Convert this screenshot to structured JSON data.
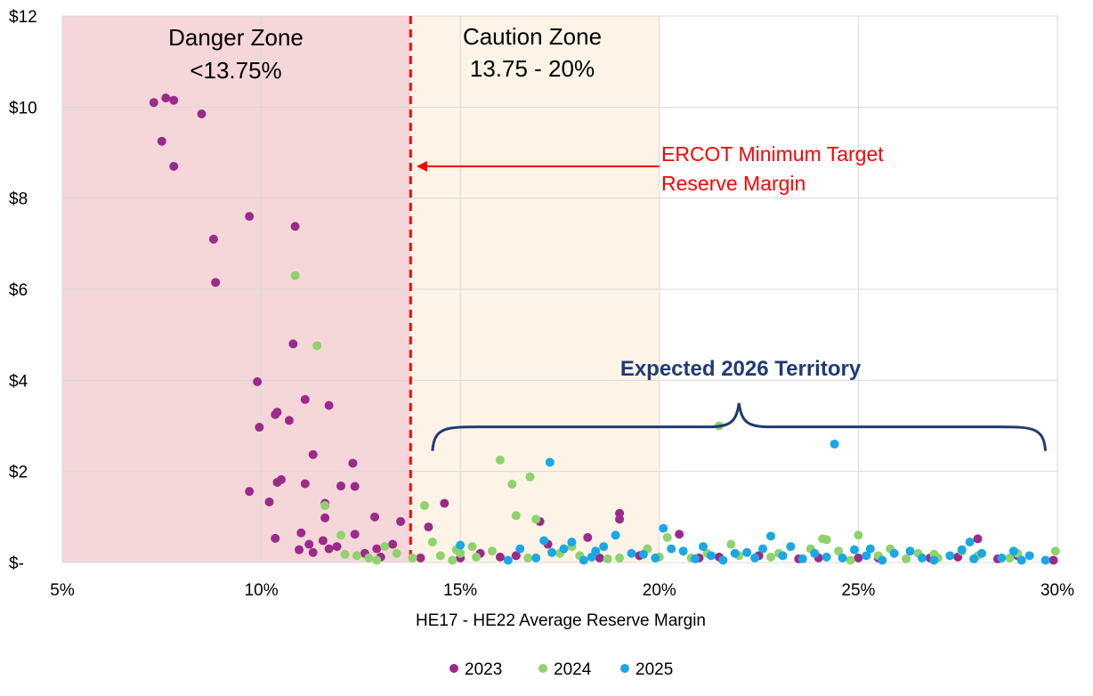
{
  "chart_data": {
    "type": "scatter",
    "title": "",
    "xlabel": "HE17 - HE22 Average Reserve Margin",
    "ylabel": "",
    "xlim": [
      5,
      30
    ],
    "ylim": [
      0,
      12
    ],
    "x_ticks": [
      5,
      10,
      15,
      20,
      25,
      30
    ],
    "x_tick_labels": [
      "5%",
      "10%",
      "15%",
      "20%",
      "25%",
      "30%"
    ],
    "y_ticks": [
      0,
      2,
      4,
      6,
      8,
      10,
      12
    ],
    "y_tick_labels": [
      "$-",
      "$2",
      "$4",
      "$6",
      "$8",
      "$10",
      "$12"
    ],
    "grid": true,
    "legend_position": "bottom-center",
    "zones": [
      {
        "name": "danger",
        "label_line1": "Danger Zone",
        "label_line2": "<13.75%",
        "x_from": 5,
        "x_to": 13.75,
        "color": "#f5d7d9"
      },
      {
        "name": "caution",
        "label_line1": "Caution Zone",
        "label_line2": "13.75 - 20%",
        "x_from": 13.75,
        "x_to": 20,
        "color": "#fdf3e6"
      }
    ],
    "reference_line": {
      "x": 13.75,
      "color": "#ff0000"
    },
    "annotations": {
      "target_line1": "ERCOT Minimum Target",
      "target_line2": "Reserve Margin",
      "target_arrow_from": [
        20,
        8.7
      ],
      "target_arrow_to": [
        13.9,
        8.7
      ],
      "territory_label": "Expected 2026 Territory",
      "territory_brace": {
        "x_from": 14.3,
        "x_to": 29.7,
        "y_base": 2.45,
        "y_tip": 3.5
      }
    },
    "series": [
      {
        "name": "2023",
        "color": "#9b2a8a",
        "points": [
          [
            7.3,
            10.1
          ],
          [
            7.6,
            10.2
          ],
          [
            7.8,
            10.15
          ],
          [
            7.5,
            9.25
          ],
          [
            8.5,
            9.85
          ],
          [
            7.8,
            8.7
          ],
          [
            9.7,
            7.6
          ],
          [
            10.85,
            7.38
          ],
          [
            8.8,
            7.1
          ],
          [
            8.85,
            6.15
          ],
          [
            10.8,
            4.8
          ],
          [
            9.9,
            3.97
          ],
          [
            11.1,
            3.58
          ],
          [
            11.7,
            3.45
          ],
          [
            10.4,
            3.3
          ],
          [
            10.35,
            3.25
          ],
          [
            10.7,
            3.12
          ],
          [
            9.95,
            2.97
          ],
          [
            11.3,
            2.37
          ],
          [
            12.3,
            2.18
          ],
          [
            10.5,
            1.82
          ],
          [
            10.4,
            1.76
          ],
          [
            11.1,
            1.73
          ],
          [
            12.0,
            1.68
          ],
          [
            12.35,
            1.67
          ],
          [
            9.7,
            1.56
          ],
          [
            10.2,
            1.33
          ],
          [
            11.6,
            1.3
          ],
          [
            12.85,
            1.0
          ],
          [
            11.6,
            0.98
          ],
          [
            13.5,
            0.9
          ],
          [
            11.0,
            0.65
          ],
          [
            12.35,
            0.62
          ],
          [
            11.55,
            0.48
          ],
          [
            10.35,
            0.53
          ],
          [
            13.3,
            0.4
          ],
          [
            11.2,
            0.4
          ],
          [
            12.9,
            0.3
          ],
          [
            10.95,
            0.28
          ],
          [
            11.7,
            0.3
          ],
          [
            11.9,
            0.35
          ],
          [
            11.3,
            0.22
          ],
          [
            12.6,
            0.2
          ],
          [
            14.6,
            1.3
          ],
          [
            14.2,
            0.78
          ],
          [
            17.0,
            0.9
          ],
          [
            19.0,
            1.08
          ],
          [
            19.0,
            0.95
          ],
          [
            20.5,
            0.62
          ],
          [
            28.0,
            0.52
          ],
          [
            17.2,
            0.4
          ],
          [
            18.2,
            0.55
          ],
          [
            15.5,
            0.2
          ],
          [
            16.4,
            0.15
          ],
          [
            18.5,
            0.1
          ],
          [
            21.0,
            0.1
          ],
          [
            22.5,
            0.15
          ],
          [
            24.0,
            0.1
          ],
          [
            25.5,
            0.1
          ],
          [
            26.8,
            0.1
          ],
          [
            29.9,
            0.05
          ],
          [
            13.0,
            0.12
          ],
          [
            15.0,
            0.1
          ],
          [
            23.5,
            0.08
          ],
          [
            27.5,
            0.12
          ],
          [
            29.0,
            0.15
          ],
          [
            16.0,
            0.12
          ],
          [
            19.5,
            0.15
          ],
          [
            21.5,
            0.12
          ],
          [
            25.0,
            0.1
          ],
          [
            28.5,
            0.08
          ],
          [
            14.0,
            0.1
          ]
        ]
      },
      {
        "name": "2024",
        "color": "#8ed36c",
        "points": [
          [
            10.85,
            6.3
          ],
          [
            11.4,
            4.76
          ],
          [
            21.5,
            3.0
          ],
          [
            16.0,
            2.25
          ],
          [
            16.3,
            1.72
          ],
          [
            16.75,
            1.88
          ],
          [
            14.1,
            1.25
          ],
          [
            11.6,
            1.25
          ],
          [
            16.4,
            1.03
          ],
          [
            16.9,
            0.95
          ],
          [
            14.3,
            0.45
          ],
          [
            20.2,
            0.55
          ],
          [
            24.2,
            0.5
          ],
          [
            25.0,
            0.6
          ],
          [
            24.1,
            0.52
          ],
          [
            12.0,
            0.6
          ],
          [
            13.1,
            0.35
          ],
          [
            12.4,
            0.15
          ],
          [
            12.7,
            0.1
          ],
          [
            13.4,
            0.2
          ],
          [
            14.5,
            0.15
          ],
          [
            15.0,
            0.2
          ],
          [
            15.4,
            0.12
          ],
          [
            15.8,
            0.25
          ],
          [
            17.5,
            0.2
          ],
          [
            18.0,
            0.15
          ],
          [
            19.0,
            0.1
          ],
          [
            20.0,
            0.12
          ],
          [
            21.2,
            0.2
          ],
          [
            22.0,
            0.15
          ],
          [
            23.0,
            0.2
          ],
          [
            24.5,
            0.25
          ],
          [
            25.5,
            0.15
          ],
          [
            26.5,
            0.2
          ],
          [
            27.0,
            0.1
          ],
          [
            28.0,
            0.15
          ],
          [
            29.0,
            0.2
          ],
          [
            29.95,
            0.25
          ],
          [
            12.1,
            0.18
          ],
          [
            12.9,
            0.05
          ],
          [
            14.8,
            0.05
          ],
          [
            16.7,
            0.1
          ],
          [
            18.7,
            0.08
          ],
          [
            20.8,
            0.1
          ],
          [
            22.8,
            0.12
          ],
          [
            24.8,
            0.05
          ],
          [
            26.2,
            0.08
          ],
          [
            28.8,
            0.1
          ],
          [
            19.7,
            0.3
          ],
          [
            17.8,
            0.35
          ],
          [
            21.8,
            0.4
          ],
          [
            23.8,
            0.3
          ],
          [
            13.8,
            0.1
          ],
          [
            25.8,
            0.3
          ],
          [
            27.6,
            0.25
          ],
          [
            15.3,
            0.35
          ],
          [
            26.9,
            0.18
          ],
          [
            14.9,
            0.28
          ]
        ]
      },
      {
        "name": "2025",
        "color": "#1aa7e6",
        "points": [
          [
            24.4,
            2.6
          ],
          [
            17.25,
            2.2
          ],
          [
            20.1,
            0.75
          ],
          [
            27.8,
            0.45
          ],
          [
            22.8,
            0.58
          ],
          [
            17.1,
            0.48
          ],
          [
            18.9,
            0.6
          ],
          [
            17.8,
            0.45
          ],
          [
            15.0,
            0.38
          ],
          [
            16.5,
            0.3
          ],
          [
            17.6,
            0.3
          ],
          [
            18.4,
            0.25
          ],
          [
            19.3,
            0.2
          ],
          [
            20.6,
            0.25
          ],
          [
            21.3,
            0.15
          ],
          [
            21.9,
            0.2
          ],
          [
            22.4,
            0.1
          ],
          [
            23.1,
            0.15
          ],
          [
            23.9,
            0.2
          ],
          [
            24.6,
            0.1
          ],
          [
            25.2,
            0.15
          ],
          [
            25.9,
            0.2
          ],
          [
            26.6,
            0.1
          ],
          [
            27.3,
            0.15
          ],
          [
            28.1,
            0.2
          ],
          [
            28.6,
            0.1
          ],
          [
            29.3,
            0.15
          ],
          [
            29.7,
            0.05
          ],
          [
            16.9,
            0.1
          ],
          [
            18.1,
            0.05
          ],
          [
            19.9,
            0.1
          ],
          [
            21.6,
            0.05
          ],
          [
            23.6,
            0.08
          ],
          [
            25.6,
            0.05
          ],
          [
            27.9,
            0.08
          ],
          [
            17.3,
            0.22
          ],
          [
            18.6,
            0.35
          ],
          [
            20.3,
            0.3
          ],
          [
            22.6,
            0.3
          ],
          [
            24.9,
            0.28
          ],
          [
            26.3,
            0.25
          ],
          [
            28.9,
            0.25
          ],
          [
            21.1,
            0.35
          ],
          [
            19.6,
            0.18
          ],
          [
            18.3,
            0.12
          ],
          [
            16.2,
            0.05
          ],
          [
            23.3,
            0.35
          ],
          [
            25.3,
            0.3
          ],
          [
            29.1,
            0.05
          ],
          [
            24.2,
            0.12
          ],
          [
            20.9,
            0.08
          ],
          [
            22.2,
            0.22
          ],
          [
            26.9,
            0.05
          ],
          [
            27.6,
            0.28
          ]
        ]
      }
    ]
  }
}
